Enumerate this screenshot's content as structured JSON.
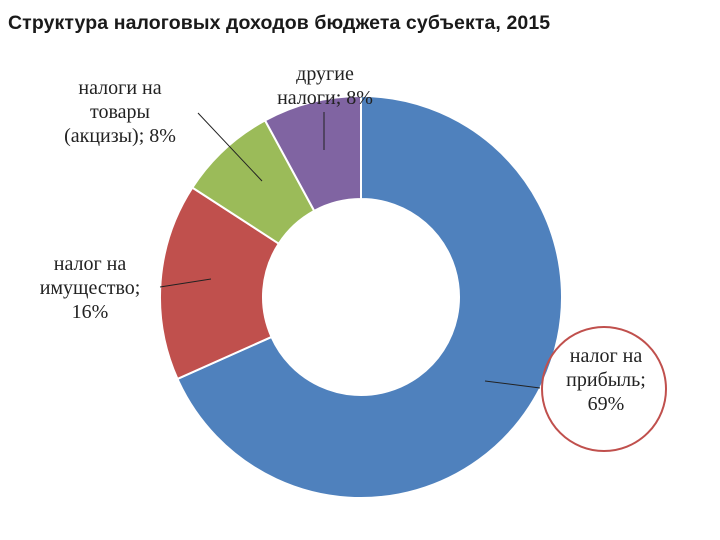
{
  "chart_data": {
    "type": "pie",
    "donut": true,
    "title": "Структура налоговых доходов бюджета субъекта, 2015",
    "slices": [
      {
        "label": "налог на прибыль",
        "value": 69,
        "color": "#4f81bd",
        "label_lines": [
          "налог на",
          "прибыль;",
          "69%"
        ]
      },
      {
        "label": "налог на имущество",
        "value": 16,
        "color": "#c0504d",
        "label_lines": [
          "налог на",
          "имущество;",
          "16%"
        ]
      },
      {
        "label": "налоги на товары (акцизы)",
        "value": 8,
        "color": "#9bbb59",
        "label_lines": [
          "налоги на",
          "товары",
          "(акцизы); 8%"
        ]
      },
      {
        "label": "другие налоги",
        "value": 8,
        "color": "#8064a2",
        "label_lines": [
          "другие",
          "налоги; 8%"
        ]
      }
    ],
    "legend": "none",
    "highlighted_slice": "налог на прибыль"
  }
}
